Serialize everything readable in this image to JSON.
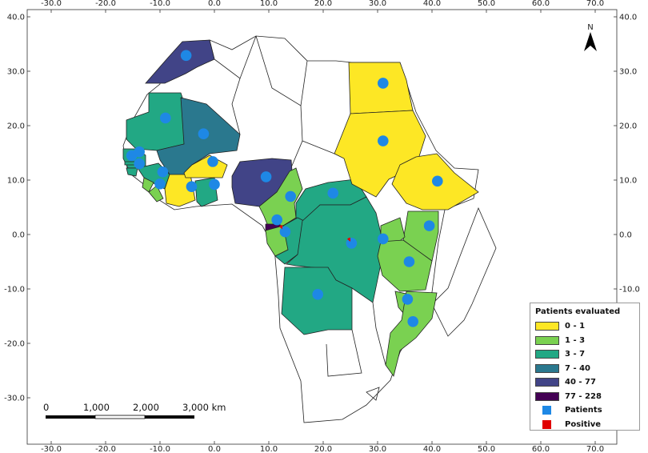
{
  "map": {
    "lon_ticks": [
      "-30.0",
      "-20.0",
      "-10.0",
      "0.0",
      "10.0",
      "20.0",
      "30.0",
      "40.0",
      "50.0",
      "60.0",
      "70.0"
    ],
    "lat_ticks": [
      "40.0",
      "30.0",
      "20.0",
      "10.0",
      "0.0",
      "-10.0",
      "-20.0",
      "-30.0"
    ],
    "north_label": "N",
    "scalebar": {
      "labels": [
        "0",
        "1,000",
        "2,000",
        "3,000 km"
      ]
    }
  },
  "legend": {
    "title": "Patients evaluated",
    "classes": [
      {
        "label": "0 - 1",
        "color": "#fde725"
      },
      {
        "label": "1 - 3",
        "color": "#7ad151"
      },
      {
        "label": "3 - 7",
        "color": "#22a884"
      },
      {
        "label": "7 - 40",
        "color": "#2a788e"
      },
      {
        "label": "40 - 77",
        "color": "#414487"
      },
      {
        "label": "77 - 228",
        "color": "#440154"
      }
    ],
    "markers": [
      {
        "label": "Patients",
        "color": "#1e88e5"
      },
      {
        "label": "Positive",
        "color": "#e00000"
      }
    ]
  },
  "colors": {
    "no_data": "#ffffff",
    "border": "#222222",
    "patients": "#1e88e5",
    "positive": "#e00000"
  },
  "chart_data": {
    "type": "choropleth",
    "countries": [
      {
        "name": "Morocco",
        "class": "40 - 77"
      },
      {
        "name": "Mauritania",
        "class": "3 - 7"
      },
      {
        "name": "Mali",
        "class": "7 - 40"
      },
      {
        "name": "Senegal",
        "class": "3 - 7"
      },
      {
        "name": "Gambia",
        "class": "3 - 7"
      },
      {
        "name": "Guinea-Bissau",
        "class": "3 - 7"
      },
      {
        "name": "Guinea",
        "class": "3 - 7"
      },
      {
        "name": "Sierra Leone",
        "class": "1 - 3"
      },
      {
        "name": "Liberia",
        "class": "1 - 3"
      },
      {
        "name": "Cote d'Ivoire",
        "class": "0 - 1"
      },
      {
        "name": "Burkina Faso",
        "class": "0 - 1"
      },
      {
        "name": "Ghana",
        "class": "3 - 7"
      },
      {
        "name": "Nigeria",
        "class": "40 - 77"
      },
      {
        "name": "Cameroon",
        "class": "1 - 3"
      },
      {
        "name": "Central African Republic",
        "class": "3 - 7"
      },
      {
        "name": "Equatorial Guinea",
        "class": "77 - 228"
      },
      {
        "name": "Gabon",
        "class": "1 - 3"
      },
      {
        "name": "Congo",
        "class": "3 - 7"
      },
      {
        "name": "DR Congo",
        "class": "3 - 7"
      },
      {
        "name": "Angola",
        "class": "3 - 7"
      },
      {
        "name": "Egypt",
        "class": "0 - 1"
      },
      {
        "name": "Sudan",
        "class": "0 - 1"
      },
      {
        "name": "Ethiopia",
        "class": "0 - 1"
      },
      {
        "name": "Kenya",
        "class": "1 - 3"
      },
      {
        "name": "Uganda",
        "class": "1 - 3"
      },
      {
        "name": "Tanzania",
        "class": "1 - 3"
      },
      {
        "name": "Malawi",
        "class": "1 - 3"
      },
      {
        "name": "Mozambique",
        "class": "1 - 3"
      }
    ],
    "patient_points": [
      {
        "lon": -5.2,
        "lat": 32.9
      },
      {
        "lon": -9.0,
        "lat": 21.4
      },
      {
        "lon": -2.0,
        "lat": 18.5
      },
      {
        "lon": -15.2,
        "lat": 14.5
      },
      {
        "lon": -13.8,
        "lat": 15.2
      },
      {
        "lon": -13.8,
        "lat": 13.0
      },
      {
        "lon": -9.5,
        "lat": 11.5
      },
      {
        "lon": -10.0,
        "lat": 9.3
      },
      {
        "lon": -4.2,
        "lat": 8.8
      },
      {
        "lon": -0.3,
        "lat": 13.4
      },
      {
        "lon": 0.0,
        "lat": 9.2
      },
      {
        "lon": 9.5,
        "lat": 10.6
      },
      {
        "lon": 14.0,
        "lat": 7.0
      },
      {
        "lon": 21.8,
        "lat": 7.6
      },
      {
        "lon": 11.5,
        "lat": 2.7
      },
      {
        "lon": 13.0,
        "lat": 0.5
      },
      {
        "lon": 25.2,
        "lat": -1.6
      },
      {
        "lon": 31.0,
        "lat": -0.8
      },
      {
        "lon": 39.5,
        "lat": 1.6
      },
      {
        "lon": 31.0,
        "lat": 27.8
      },
      {
        "lon": 31.0,
        "lat": 17.2
      },
      {
        "lon": 41.0,
        "lat": 9.8
      },
      {
        "lon": 35.8,
        "lat": -5.0
      },
      {
        "lon": 35.5,
        "lat": -11.9
      },
      {
        "lon": 36.5,
        "lat": -16.0
      },
      {
        "lon": 19.0,
        "lat": -11.0
      }
    ],
    "positive_points": [
      {
        "lon": 12.5,
        "lat": 1.0
      },
      {
        "lon": 25.0,
        "lat": -1.3
      }
    ]
  }
}
